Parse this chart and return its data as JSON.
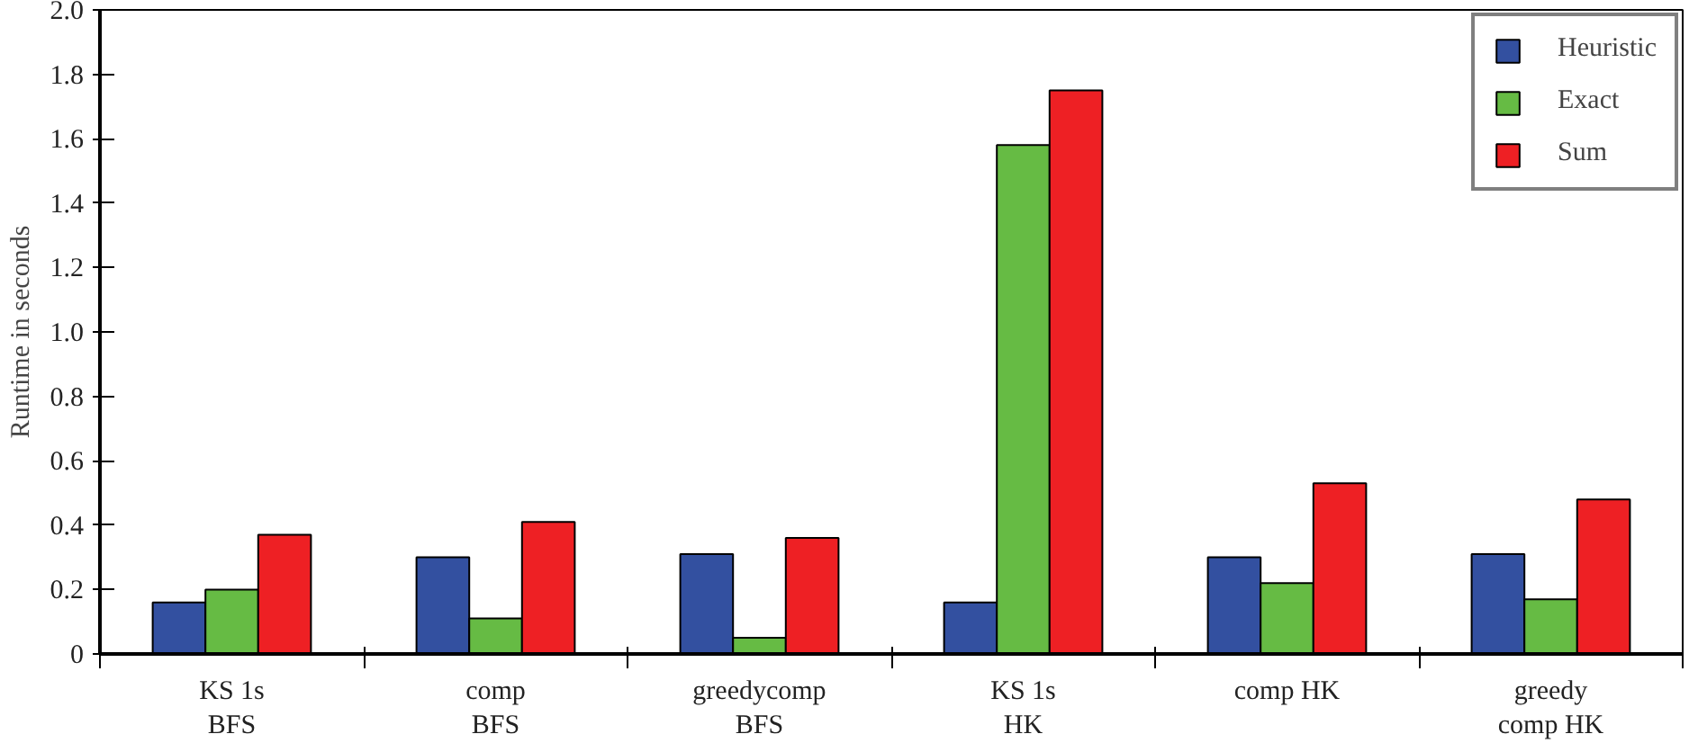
{
  "chart_data": {
    "type": "bar",
    "ylabel": "Runtime in seconds",
    "categories": [
      "KS 1s\nBFS",
      "comp\nBFS",
      "greedycomp\nBFS",
      "KS 1s\nHK",
      "comp HK",
      "greedy\ncomp HK"
    ],
    "series": [
      {
        "name": "Heuristic",
        "color": "#3350a0",
        "values": [
          0.16,
          0.3,
          0.31,
          0.16,
          0.3,
          0.31
        ]
      },
      {
        "name": "Exact",
        "color": "#66bb44",
        "values": [
          0.2,
          0.11,
          0.05,
          1.58,
          0.22,
          0.17
        ]
      },
      {
        "name": "Sum",
        "color": "#ee2024",
        "values": [
          0.37,
          0.41,
          0.36,
          1.75,
          0.53,
          0.48
        ]
      }
    ],
    "ylim": [
      0,
      2.0
    ],
    "yticks": [
      0,
      {
        "value": 0.2,
        "label": "0.2"
      },
      {
        "value": 0.4,
        "label": "0.4"
      },
      {
        "value": 0.6,
        "label": "0.6"
      },
      {
        "value": 0.8,
        "label": "0.8"
      },
      {
        "value": 1.0,
        "label": "1.0"
      },
      {
        "value": 1.2,
        "label": "1.2"
      },
      {
        "value": 1.4,
        "label": "1.4"
      },
      {
        "value": 1.6,
        "label": "1.6"
      },
      {
        "value": 1.8,
        "label": "1.8"
      },
      {
        "value": 2.0,
        "label": "2.0"
      }
    ],
    "grid": false,
    "legend": "top right"
  }
}
